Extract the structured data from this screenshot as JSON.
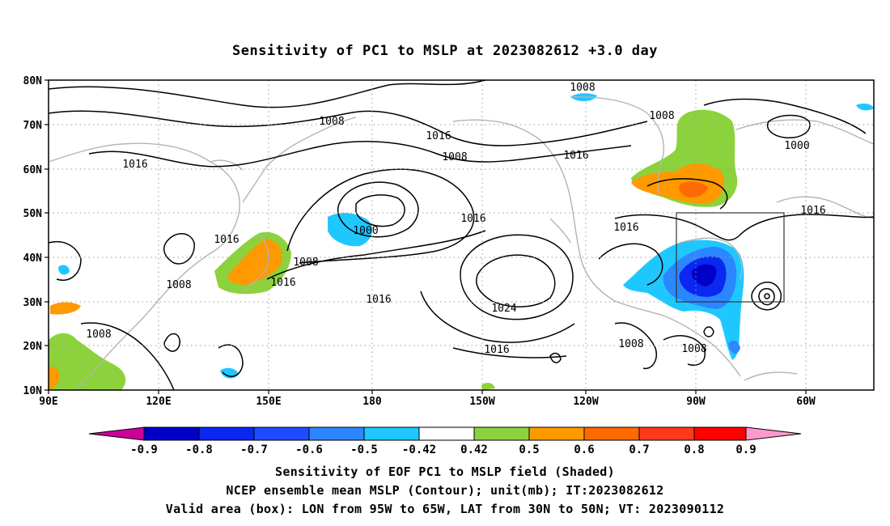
{
  "title": "Sensitivity of PC1 to MSLP at 2023082612 +3.0 day",
  "lat_ticks": [
    "10N",
    "20N",
    "30N",
    "40N",
    "50N",
    "60N",
    "70N",
    "80N"
  ],
  "lon_ticks": [
    "90E",
    "120E",
    "150E",
    "180",
    "150W",
    "120W",
    "90W",
    "60W"
  ],
  "contour_labels": [
    "1008",
    "1008",
    "1016",
    "1016",
    "1008",
    "1016",
    "1000",
    "1016",
    "1016",
    "1000",
    "1016",
    "1008",
    "1016",
    "1008",
    "1016",
    "1024",
    "1016",
    "1008",
    "1008",
    "1016",
    "1008",
    "1008"
  ],
  "colorbar": {
    "labels": [
      "-0.9",
      "-0.8",
      "-0.7",
      "-0.6",
      "-0.5",
      "-0.42",
      "0.42",
      "0.5",
      "0.6",
      "0.7",
      "0.8",
      "0.9"
    ],
    "colors": [
      "#0000c8",
      "#0a28f0",
      "#1e4bff",
      "#2c86ff",
      "#1ec8ff",
      "#ffffff",
      "#8cd23c",
      "#ff9900",
      "#ff6a00",
      "#ff3a1a",
      "#ff0000"
    ],
    "left_arrow": "#cc0099",
    "right_arrow": "#ff99cc"
  },
  "captions": [
    "Sensitivity of EOF PC1 to MSLP field (Shaded)",
    "NCEP ensemble mean MSLP (Contour); unit(mb); IT:2023082612",
    "Valid area (box): LON from 95W to 65W, LAT from 30N to 50N; VT: 2023090112"
  ],
  "valid_box": {
    "lon_min": -95,
    "lon_max": -65,
    "lat_min": 30,
    "lat_max": 50
  }
}
